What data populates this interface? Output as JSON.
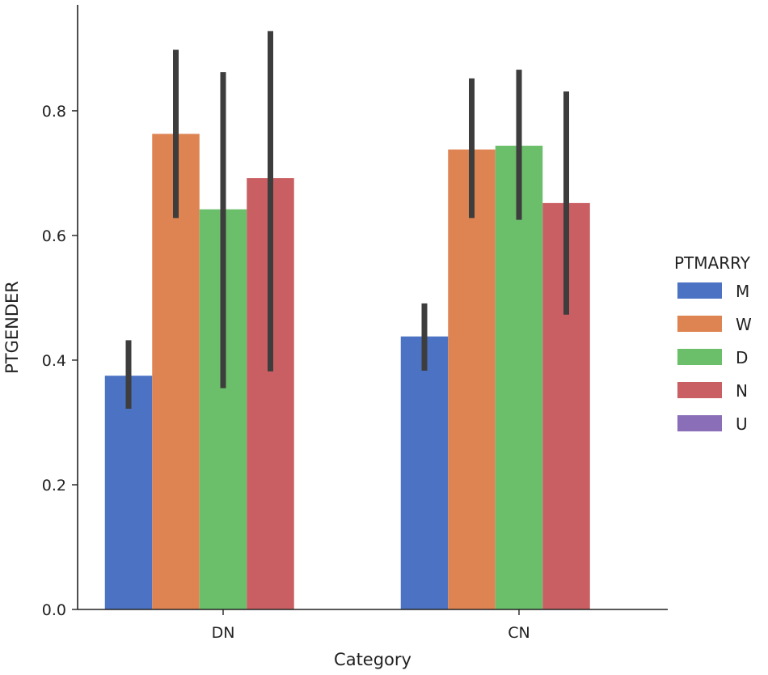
{
  "chart_data": {
    "type": "bar",
    "xlabel": "Category",
    "ylabel": "PTGENDER",
    "categories": [
      "DN",
      "CN"
    ],
    "ylim": [
      0.0,
      0.97
    ],
    "yticks": [
      0.0,
      0.2,
      0.4,
      0.6,
      0.8
    ],
    "ytick_labels": [
      "0.0",
      "0.2",
      "0.4",
      "0.6",
      "0.8"
    ],
    "grid": false,
    "legend": {
      "title": "PTMARRY",
      "placement": "right"
    },
    "series": [
      {
        "name": "M",
        "color": "#4c72c4",
        "values": [
          0.375,
          0.438
        ],
        "err_low": [
          0.322,
          0.383
        ],
        "err_high": [
          0.432,
          0.491
        ]
      },
      {
        "name": "W",
        "color": "#dd8452",
        "values": [
          0.763,
          0.738
        ],
        "err_low": [
          0.628,
          0.628
        ],
        "err_high": [
          0.898,
          0.852
        ]
      },
      {
        "name": "D",
        "color": "#6cbf6a",
        "values": [
          0.642,
          0.744
        ],
        "err_low": [
          0.355,
          0.625
        ],
        "err_high": [
          0.862,
          0.866
        ]
      },
      {
        "name": "N",
        "color": "#c95f63",
        "values": [
          0.692,
          0.652
        ],
        "err_low": [
          0.382,
          0.473
        ],
        "err_high": [
          0.928,
          0.831
        ]
      },
      {
        "name": "U",
        "color": "#8a6fb8",
        "values": [
          null,
          null
        ],
        "err_low": [
          null,
          null
        ],
        "err_high": [
          null,
          null
        ]
      }
    ]
  }
}
